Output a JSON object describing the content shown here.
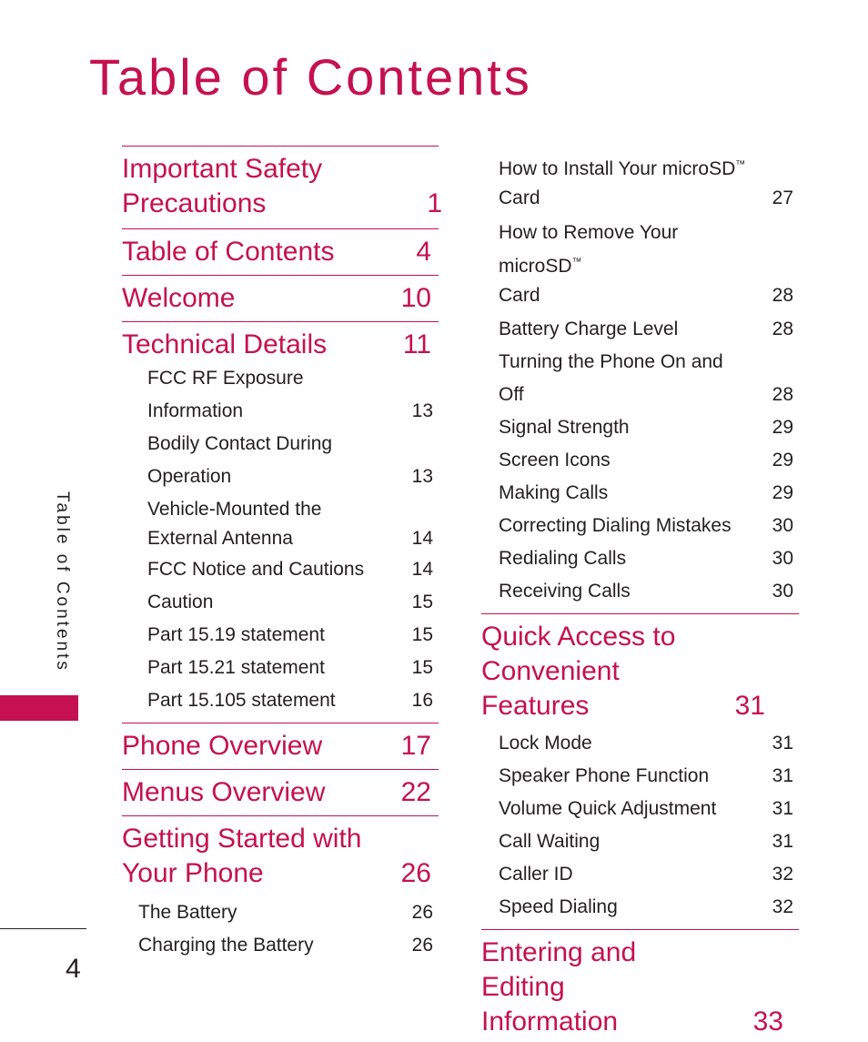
{
  "title": "Table of Contents",
  "side_label": "Table of Contents",
  "page_number": "4",
  "left": {
    "sections": [
      {
        "title": "Important Safety Precautions",
        "page": "1",
        "items": []
      },
      {
        "title": "Table of Contents",
        "page": "4",
        "items": []
      },
      {
        "title": "Welcome",
        "page": "10",
        "items": []
      },
      {
        "title": "Technical Details",
        "page": "11",
        "items": [
          {
            "label": "FCC RF Exposure Information",
            "page": "13"
          },
          {
            "label": "Bodily Contact During Operation",
            "page": "13"
          },
          {
            "label": "Vehicle-Mounted the External Antenna",
            "page": "14"
          },
          {
            "label": "FCC Notice and Cautions",
            "page": "14"
          },
          {
            "label": "Caution",
            "page": "15"
          },
          {
            "label": "Part 15.19 statement",
            "page": "15"
          },
          {
            "label": "Part 15.21 statement",
            "page": "15"
          },
          {
            "label": "Part 15.105 statement",
            "page": "16"
          }
        ]
      },
      {
        "title": "Phone Overview",
        "page": "17",
        "items": []
      },
      {
        "title": "Menus Overview",
        "page": "22",
        "items": []
      },
      {
        "title": "Getting Started with Your Phone",
        "page": "26",
        "items": [
          {
            "label": "The Battery",
            "page": "26"
          },
          {
            "label": "Charging the Battery",
            "page": "26"
          }
        ]
      }
    ]
  },
  "right": {
    "items_top": [
      {
        "label": "How to Install Your microSD",
        "tm": "™",
        "label2": "Card",
        "page": "27"
      },
      {
        "label": "How to Remove Your microSD",
        "tm": "™",
        "label2": "Card",
        "page": "28"
      },
      {
        "label": "Battery Charge Level",
        "page": "28"
      },
      {
        "label": "Turning the Phone On and Off",
        "page": "28"
      },
      {
        "label": "Signal Strength",
        "page": "29"
      },
      {
        "label": "Screen Icons",
        "page": "29"
      },
      {
        "label": "Making Calls",
        "page": "29"
      },
      {
        "label": "Correcting Dialing Mistakes",
        "page": "30"
      },
      {
        "label": "Redialing Calls",
        "page": "30"
      },
      {
        "label": "Receiving Calls",
        "page": "30"
      }
    ],
    "sections": [
      {
        "title": "Quick Access to Convenient Features",
        "page": "31",
        "items": [
          {
            "label": "Lock Mode",
            "page": "31"
          },
          {
            "label": "Speaker Phone Function",
            "page": "31"
          },
          {
            "label": "Volume Quick Adjustment",
            "page": "31"
          },
          {
            "label": "Call Waiting",
            "page": "31"
          },
          {
            "label": "Caller ID",
            "page": "32"
          },
          {
            "label": "Speed Dialing",
            "page": "32"
          }
        ]
      },
      {
        "title": "Entering and Editing Information",
        "page": "33",
        "items": []
      }
    ]
  },
  "colors": {
    "accent": "#c5114f",
    "text": "#231f20"
  }
}
